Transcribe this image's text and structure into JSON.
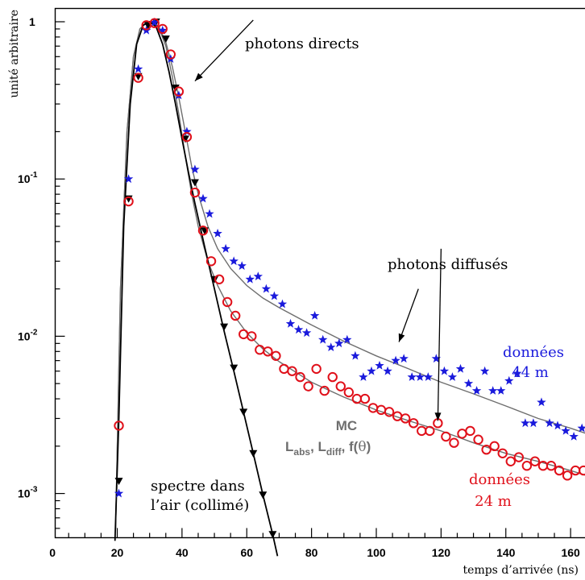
{
  "chart_data": {
    "type": "scatter",
    "yscale": "log",
    "xlim": [
      0,
      165
    ],
    "ylim": [
      0.0005,
      1.5
    ],
    "grid": false,
    "xlabel": "temps d’arrivée (ns)",
    "ylabel": "unité arbitraire",
    "x_ticks": [
      0,
      20,
      40,
      60,
      80,
      100,
      120,
      140,
      160
    ],
    "x_tick_labels": [
      "0",
      "20",
      "40",
      "60",
      "80",
      "100",
      "120",
      "140",
      "160"
    ],
    "y_ticks": [
      0.001,
      0.01,
      0.1,
      1
    ],
    "y_tick_labels": [
      {
        "base": "10",
        "exp": "-3"
      },
      {
        "base": "10",
        "exp": "-2"
      },
      {
        "base": "10",
        "exp": "-1"
      },
      {
        "base": "1",
        "exp": ""
      }
    ],
    "annotations": {
      "photons_directs": "photons directs",
      "photons_diffuses": "photons diffusés",
      "donnees44_line1": "données",
      "donnees44_line2": "44 m",
      "donnees24_line1": "données",
      "donnees24_line2": "24 m",
      "spectre_line1": "spectre dans",
      "spectre_line2": "l’air (collimé)",
      "mc": "MC",
      "mc_labs": "L",
      "mc_labs_sub": "abs",
      "mc_comma1": ", ",
      "mc_ldiff": "L",
      "mc_ldiff_sub": "diff",
      "mc_comma2": ", f(",
      "mc_theta": "θ",
      "mc_close": ")"
    },
    "colors": {
      "air": "#000000",
      "d44": "#1a1adc",
      "d24": "#e0101a",
      "mc": "#6e6e6e"
    },
    "series": [
      {
        "name": "spectre dans l’air (collimé)",
        "marker": "down-triangle",
        "color": "#000000",
        "x": [
          20.5,
          23.5,
          26.5,
          29.5,
          32.0,
          35.0,
          38.0,
          41.0,
          44.0,
          47.0,
          50.0,
          53.0,
          56.0,
          59.0,
          62.0,
          65.0,
          68.0
        ],
        "y": [
          0.0012,
          0.075,
          0.45,
          0.95,
          1.0,
          0.78,
          0.38,
          0.18,
          0.095,
          0.047,
          0.023,
          0.0115,
          0.0063,
          0.0033,
          0.0018,
          0.00098,
          0.00055
        ]
      },
      {
        "name": "données 44 m",
        "marker": "star",
        "color": "#1a1adc",
        "x": [
          20.5,
          23.5,
          26.5,
          29.0,
          31.5,
          34.0,
          36.5,
          39.0,
          41.5,
          44.0,
          46.5,
          48.5,
          51.0,
          53.5,
          56.0,
          58.5,
          61.0,
          63.5,
          66.0,
          68.5,
          71.0,
          73.5,
          76.0,
          78.5,
          81.0,
          83.5,
          86.0,
          88.5,
          91.0,
          93.5,
          96.0,
          98.5,
          101.0,
          103.5,
          106.0,
          108.5,
          111.0,
          113.5,
          116.0,
          118.5,
          121.0,
          123.5,
          126.0,
          128.5,
          131.0,
          133.5,
          136.0,
          138.5,
          141.0,
          143.5,
          146.0,
          148.5,
          151.0,
          153.5,
          156.0,
          158.5,
          161.0,
          163.5
        ],
        "y": [
          0.001,
          0.1,
          0.5,
          0.88,
          0.99,
          0.88,
          0.58,
          0.34,
          0.2,
          0.115,
          0.075,
          0.06,
          0.045,
          0.036,
          0.03,
          0.028,
          0.023,
          0.024,
          0.02,
          0.018,
          0.016,
          0.012,
          0.011,
          0.0105,
          0.0135,
          0.0095,
          0.0085,
          0.009,
          0.0095,
          0.0075,
          0.0055,
          0.006,
          0.0065,
          0.006,
          0.007,
          0.0072,
          0.0055,
          0.0055,
          0.0055,
          0.0072,
          0.006,
          0.0055,
          0.0062,
          0.005,
          0.0045,
          0.006,
          0.0045,
          0.0045,
          0.0052,
          0.0058,
          0.0028,
          0.0028,
          0.0038,
          0.0028,
          0.0027,
          0.0025,
          0.0023,
          0.0026
        ]
      },
      {
        "name": "données 24 m",
        "marker": "open-circle",
        "color": "#e0101a",
        "x": [
          20.5,
          23.5,
          26.5,
          29.0,
          31.5,
          34.0,
          36.5,
          39.0,
          41.5,
          44.0,
          46.5,
          49.0,
          51.5,
          54.0,
          56.5,
          59.0,
          61.5,
          64.0,
          66.5,
          69.0,
          71.5,
          74.0,
          76.5,
          79.0,
          81.5,
          84.0,
          86.5,
          89.0,
          91.5,
          94.0,
          96.5,
          99.0,
          101.5,
          104.0,
          106.5,
          109.0,
          111.5,
          114.0,
          116.5,
          119.0,
          121.5,
          124.0,
          126.5,
          129.0,
          131.5,
          134.0,
          136.5,
          139.0,
          141.5,
          144.0,
          146.5,
          149.0,
          151.5,
          154.0,
          156.5,
          159.0,
          161.5,
          164.0
        ],
        "y": [
          0.0027,
          0.072,
          0.44,
          0.95,
          0.98,
          0.9,
          0.62,
          0.36,
          0.185,
          0.082,
          0.047,
          0.03,
          0.023,
          0.0165,
          0.0135,
          0.0103,
          0.01,
          0.0082,
          0.008,
          0.0075,
          0.0062,
          0.006,
          0.0055,
          0.0048,
          0.0062,
          0.0045,
          0.0055,
          0.0048,
          0.0044,
          0.004,
          0.004,
          0.0035,
          0.0034,
          0.0033,
          0.0031,
          0.003,
          0.0028,
          0.0025,
          0.0025,
          0.0028,
          0.0023,
          0.0021,
          0.0024,
          0.0025,
          0.0022,
          0.0019,
          0.002,
          0.0018,
          0.0016,
          0.0017,
          0.0015,
          0.0016,
          0.0015,
          0.0015,
          0.0014,
          0.0013,
          0.0014,
          0.0014
        ]
      }
    ],
    "curves": [
      {
        "label": "MC 44 m",
        "color": "#6e6e6e",
        "x": [
          19.5,
          21,
          23,
          25,
          27,
          29,
          31,
          33,
          35,
          37,
          39,
          41,
          43,
          45,
          48,
          51,
          55,
          60,
          65,
          70,
          80,
          90,
          100,
          110,
          120,
          130,
          140,
          150,
          160,
          165
        ],
        "y": [
          0.0006,
          0.02,
          0.2,
          0.6,
          0.9,
          0.99,
          1.0,
          0.92,
          0.74,
          0.52,
          0.33,
          0.2,
          0.12,
          0.08,
          0.05,
          0.036,
          0.027,
          0.021,
          0.0175,
          0.0152,
          0.0118,
          0.0093,
          0.0075,
          0.0062,
          0.0051,
          0.0043,
          0.0036,
          0.003,
          0.0026,
          0.0024
        ]
      },
      {
        "label": "MC 24 m",
        "color": "#6e6e6e",
        "x": [
          19.5,
          21,
          23,
          25,
          27,
          29,
          31,
          33,
          35,
          37,
          39,
          41,
          43,
          45,
          48,
          51,
          55,
          60,
          65,
          70,
          80,
          90,
          100,
          110,
          120,
          130,
          140,
          150,
          160,
          165
        ],
        "y": [
          0.0006,
          0.02,
          0.2,
          0.6,
          0.9,
          0.99,
          1.0,
          0.9,
          0.7,
          0.45,
          0.26,
          0.14,
          0.08,
          0.05,
          0.03,
          0.021,
          0.0145,
          0.0105,
          0.0083,
          0.0069,
          0.0051,
          0.0041,
          0.0034,
          0.0029,
          0.0025,
          0.0021,
          0.0018,
          0.0016,
          0.0014,
          0.0013
        ]
      },
      {
        "label": "air",
        "color": "#000000",
        "x": [
          19.3,
          20.5,
          22,
          24,
          26,
          28,
          30,
          32,
          34,
          36,
          38,
          40,
          42,
          44,
          47,
          50,
          53,
          56,
          59,
          62,
          65,
          68,
          69.5
        ],
        "y": [
          0.0005,
          0.003,
          0.05,
          0.3,
          0.72,
          0.95,
          1.0,
          0.93,
          0.72,
          0.48,
          0.3,
          0.18,
          0.11,
          0.07,
          0.037,
          0.02,
          0.0108,
          0.006,
          0.0033,
          0.0018,
          0.00098,
          0.00055,
          0.0004
        ]
      }
    ],
    "arrows": [
      {
        "target": "photons_directs",
        "from": [
          62.0,
          1.025
        ],
        "to": [
          44.0,
          0.42
        ]
      },
      {
        "target": "photons_diffuses_left",
        "from": [
          113.0,
          0.02
        ],
        "to": [
          107.0,
          0.0092
        ]
      },
      {
        "target": "photons_diffuses_right",
        "from": [
          120.0,
          0.036
        ],
        "to": [
          119.0,
          0.0029
        ]
      }
    ]
  }
}
